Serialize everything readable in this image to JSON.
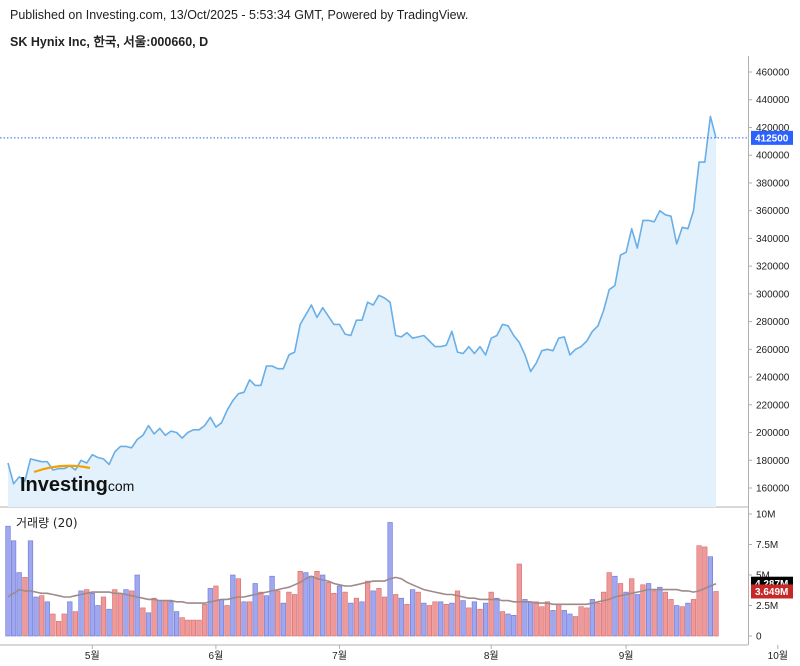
{
  "header": {
    "published": "Published on Investing.com, 13/Oct/2025 - 5:53:34 GMT, Powered by TradingView.",
    "symbol": "SK Hynix Inc, 한국, 서울:000660, D"
  },
  "logo": {
    "main": "Investing",
    "suffix": ".com"
  },
  "colors": {
    "price_line": "#6aaee6",
    "price_fill": "#e2f1fb",
    "last_price_badge": "#2962ff",
    "volume_up": "#ef9a9a",
    "volume_down": "#9fa8ef",
    "volume_ma": "#9e8a8a",
    "ma_badge": "#000000",
    "volume_badge": "#c62828",
    "axis": "#b0b0b0"
  },
  "chart_data": [
    {
      "type": "area",
      "title": "SK Hynix Inc, 한국, 서울:000660, D",
      "xlabel": "",
      "ylabel": "",
      "ylim": [
        145000,
        470000
      ],
      "y_ticks": [
        "160000",
        "180000",
        "200000",
        "220000",
        "240000",
        "260000",
        "280000",
        "300000",
        "320000",
        "340000",
        "360000",
        "380000",
        "400000",
        "420000",
        "440000",
        "460000"
      ],
      "x_tick_labels": [
        "5월",
        "6월",
        "7월",
        "8월",
        "9월",
        "10월"
      ],
      "x_tick_index": [
        15,
        37,
        59,
        86,
        110,
        137
      ],
      "last_price": 412500,
      "last_price_label": "412500",
      "grid": false,
      "series": [
        {
          "values": [
            178000,
            163000,
            168000,
            165000,
            181000,
            180000,
            179000,
            179000,
            173000,
            174000,
            174000,
            176000,
            173000,
            180000,
            178000,
            184000,
            182000,
            181000,
            177000,
            186000,
            190000,
            190000,
            189000,
            195000,
            198000,
            205000,
            199000,
            203000,
            198000,
            201000,
            200000,
            196000,
            200000,
            202000,
            202000,
            205000,
            211000,
            204000,
            207000,
            216000,
            223000,
            228000,
            229000,
            238000,
            234000,
            234000,
            248000,
            248000,
            246000,
            246000,
            256000,
            258000,
            278000,
            285000,
            292000,
            283000,
            290000,
            284000,
            278000,
            278000,
            271000,
            270000,
            281000,
            281000,
            294000,
            292000,
            299000,
            297000,
            294000,
            270000,
            269000,
            272000,
            268000,
            269000,
            270000,
            266000,
            262000,
            262000,
            263000,
            273000,
            258000,
            257000,
            262000,
            257000,
            262000,
            256000,
            268000,
            270000,
            278000,
            277000,
            270000,
            265000,
            256000,
            244000,
            250000,
            259000,
            260000,
            259000,
            268000,
            269000,
            256000,
            260000,
            262000,
            266000,
            273000,
            277000,
            288000,
            303000,
            306000,
            328000,
            330000,
            347000,
            333000,
            353000,
            353000,
            352000,
            360000,
            357000,
            356000,
            336000,
            348000,
            347000,
            360000,
            395000,
            395000,
            428000,
            412500
          ]
        }
      ]
    },
    {
      "type": "bar",
      "title": "거래량 (20)",
      "ylim": [
        0,
        10000000
      ],
      "y_ticks": [
        "0",
        "2.5M",
        "5M",
        "7.5M",
        "10M"
      ],
      "ma_badge": "4.287M",
      "volume_badge": "3.649M",
      "series": [
        {
          "name": "거래량",
          "values": [
            9000000,
            7800000,
            5200000,
            4800000,
            7800000,
            3200000,
            3300000,
            2800000,
            1800000,
            1200000,
            1800000,
            2800000,
            2000000,
            3700000,
            3800000,
            3500000,
            2500000,
            3200000,
            2200000,
            3800000,
            3500000,
            3800000,
            3700000,
            5000000,
            2300000,
            1900000,
            3100000,
            2900000,
            2900000,
            2800000,
            2000000,
            1500000,
            1300000,
            1300000,
            1300000,
            2600000,
            3900000,
            4100000,
            3000000,
            2500000,
            5000000,
            4700000,
            2800000,
            2800000,
            4300000,
            3600000,
            3300000,
            4900000,
            3700000,
            2700000,
            3600000,
            3400000,
            5300000,
            5200000,
            4900000,
            5300000,
            5000000,
            4400000,
            3500000,
            4100000,
            3600000,
            2700000,
            3100000,
            2800000,
            4500000,
            3700000,
            3900000,
            3200000,
            9300000,
            3400000,
            3100000,
            2600000,
            3800000,
            3600000,
            2700000,
            2500000,
            2800000,
            2800000,
            2600000,
            2700000,
            3700000,
            2900000,
            2300000,
            2800000,
            2200000,
            2700000,
            3600000,
            3100000,
            2000000,
            1800000,
            1700000,
            5900000,
            3000000,
            2800000,
            2800000,
            2400000,
            2800000,
            2100000,
            2600000,
            2100000,
            1800000,
            1600000,
            2400000,
            2300000,
            3000000,
            2700000,
            3600000,
            5200000,
            4900000,
            4300000,
            3600000,
            4700000,
            3400000,
            4200000,
            4300000,
            3700000,
            4000000,
            3600000,
            3000000,
            2500000,
            2400000,
            2700000,
            3000000,
            7400000,
            7300000,
            6500000,
            3649000
          ],
          "up": [
            false,
            false,
            false,
            true,
            false,
            false,
            true,
            false,
            true,
            true,
            true,
            false,
            true,
            false,
            true,
            false,
            false,
            true,
            false,
            true,
            true,
            false,
            true,
            false,
            true,
            false,
            true,
            false,
            true,
            false,
            false,
            true,
            true,
            true,
            true,
            true,
            false,
            true,
            false,
            true,
            false,
            true,
            false,
            true,
            false,
            true,
            false,
            false,
            true,
            false,
            true,
            true,
            true,
            false,
            false,
            true,
            false,
            true,
            true,
            false,
            true,
            false,
            true,
            false,
            true,
            false,
            true,
            true,
            false,
            true,
            false,
            true,
            false,
            true,
            false,
            true,
            true,
            false,
            true,
            false,
            true,
            false,
            true,
            false,
            true,
            false,
            true,
            false,
            true,
            false,
            false,
            true,
            false,
            false,
            true,
            true,
            true,
            false,
            true,
            false,
            false,
            true,
            true,
            true,
            false,
            true,
            true,
            true,
            false,
            true,
            false,
            true,
            false,
            true,
            false,
            true,
            false,
            true,
            true,
            false,
            true,
            false,
            true,
            true,
            true,
            false,
            true
          ]
        },
        {
          "name": "MA (20)",
          "values": [
            3200000,
            3500000,
            3800000,
            3700000,
            3700000,
            3600000,
            3500000,
            3500000,
            3400000,
            3300000,
            3200000,
            3200000,
            3300000,
            3400000,
            3500000,
            3600000,
            3600000,
            3600000,
            3600000,
            3500000,
            3500000,
            3400000,
            3300000,
            3200000,
            3100000,
            3000000,
            3000000,
            2900000,
            2900000,
            2900000,
            2800000,
            2800000,
            2700000,
            2700000,
            2700000,
            2700000,
            2800000,
            2900000,
            3000000,
            3000000,
            3100000,
            3200000,
            3200000,
            3300000,
            3400000,
            3500000,
            3600000,
            3700000,
            3800000,
            3900000,
            4000000,
            4200000,
            4400000,
            4700000,
            4900000,
            4700000,
            4600000,
            4500000,
            4300000,
            4200000,
            4100000,
            4100000,
            4200000,
            4300000,
            4400000,
            4500000,
            4500000,
            4500000,
            4700000,
            4800000,
            4700000,
            4400000,
            4200000,
            4000000,
            3800000,
            3700000,
            3600000,
            3500000,
            3400000,
            3400000,
            3300000,
            3200000,
            3100000,
            3100000,
            3000000,
            3000000,
            3000000,
            3000000,
            2900000,
            2900000,
            2800000,
            2800000,
            2800000,
            2800000,
            2700000,
            2700000,
            2700000,
            2600000,
            2600000,
            2600000,
            2600000,
            2600000,
            2600000,
            2600000,
            2700000,
            2800000,
            2900000,
            3000000,
            3200000,
            3300000,
            3400000,
            3500000,
            3600000,
            3700000,
            3800000,
            3800000,
            3800000,
            3800000,
            3800000,
            3800000,
            3700000,
            3700000,
            3600000,
            3700000,
            3900000,
            4100000,
            4287000
          ]
        }
      ],
      "x_tick_labels": [
        "5월",
        "6월",
        "7월",
        "8월",
        "9월",
        "10월"
      ]
    }
  ]
}
